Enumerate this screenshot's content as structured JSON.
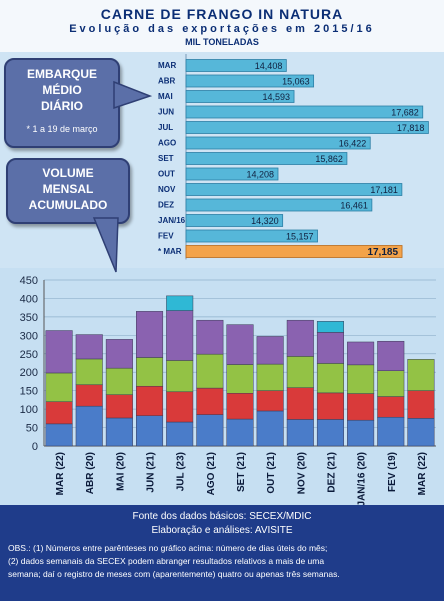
{
  "title": "CARNE DE FRANGO IN NATURA",
  "subtitle": "Evolução das exportações em 2015/16",
  "unit": "MIL TONELADAS",
  "callout_daily": {
    "label_lines": [
      "EMBARQUE",
      "MÉDIO",
      "DIÁRIO"
    ],
    "note": "* 1 a 19 de março"
  },
  "callout_monthly": {
    "label_lines": [
      "VOLUME",
      "MENSAL",
      "ACUMULADO"
    ]
  },
  "colors": {
    "bar_daily": "#56b7d9",
    "bar_highlight": "#f3a34a",
    "seg1": "#4a7cc9",
    "seg2": "#d93a3a",
    "seg3": "#93c245",
    "seg4": "#8a62b0",
    "seg_partial": "#2fb8d5"
  },
  "chart_data": [
    {
      "type": "bar",
      "orientation": "horizontal",
      "categories": [
        "MAR",
        "ABR",
        "MAI",
        "JUN",
        "JUL",
        "AGO",
        "SET",
        "OUT",
        "NOV",
        "DEZ",
        "JAN/16",
        "FEV",
        "* MAR"
      ],
      "values": [
        14408,
        15063,
        14593,
        17682,
        17818,
        16422,
        15862,
        14208,
        17181,
        16461,
        14320,
        15157,
        17185
      ],
      "value_labels": [
        "14,408",
        "15,063",
        "14,593",
        "17,682",
        "17,818",
        "16,422",
        "15,862",
        "14,208",
        "17,181",
        "16,461",
        "14,320",
        "15,157",
        "17,185"
      ],
      "highlight_index": 12,
      "xlim": [
        12000,
        18000
      ]
    },
    {
      "type": "bar",
      "stacked": true,
      "categories": [
        "MAR (22)",
        "ABR (20)",
        "MAI (20)",
        "JUN (21)",
        "JUL (23)",
        "AGO (21)",
        "SET (21)",
        "OUT (21)",
        "NOV (20)",
        "DEZ (21)",
        "JAN/16 (20)",
        "FEV (19)",
        "MAR (22)"
      ],
      "series": [
        {
          "values": [
            60,
            108,
            76,
            82,
            65,
            85,
            73,
            95,
            72,
            72,
            70,
            78,
            75
          ]
        },
        {
          "values": [
            60,
            58,
            63,
            80,
            82,
            72,
            70,
            55,
            86,
            72,
            72,
            56,
            75
          ]
        },
        {
          "values": [
            78,
            70,
            72,
            78,
            85,
            92,
            78,
            72,
            85,
            80,
            78,
            70,
            85
          ]
        },
        {
          "values": [
            115,
            66,
            78,
            125,
            135,
            92,
            108,
            75,
            98,
            84,
            62,
            80,
            0
          ]
        },
        {
          "values": [
            0,
            0,
            0,
            0,
            40,
            0,
            0,
            0,
            0,
            30,
            0,
            0,
            0
          ]
        }
      ],
      "yticks": [
        0,
        50,
        100,
        150,
        200,
        250,
        300,
        350,
        400,
        450
      ],
      "ylim": [
        0,
        450
      ],
      "grid": true
    }
  ],
  "footer": {
    "source": "Fonte dos dados básicos: SECEX/MDIC",
    "elaboration": "Elaboração e análises: AVISITE",
    "obs_lines": [
      "OBS.: (1) Números entre parênteses no gráfico acima: número de dias úteis do mês;",
      "(2) dados semanais da SECEX podem abranger resultados relativos a mais de uma",
      "semana; daí o registro de meses com (aparentemente) quatro ou apenas três semanas."
    ]
  }
}
